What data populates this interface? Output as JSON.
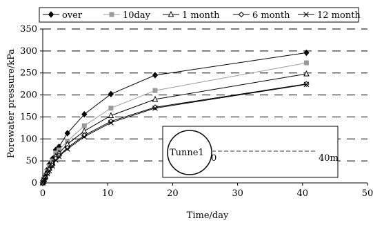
{
  "chart_data": {
    "type": "line",
    "xlabel": "Time/day",
    "ylabel": "Porewater pressure/kPa",
    "xlim": [
      0,
      50
    ],
    "ylim": [
      0,
      350
    ],
    "x_ticks": [
      0,
      10,
      20,
      30,
      40,
      50
    ],
    "y_ticks": [
      0,
      50,
      100,
      150,
      200,
      250,
      300,
      350
    ],
    "grid": "horizontal-dashed",
    "legend_position": "top",
    "x": [
      0,
      0.1,
      0.2,
      0.4,
      0.7,
      1.0,
      1.5,
      2.0,
      2.5,
      3.8,
      6.4,
      10.5,
      17.3,
      40.6
    ],
    "series": [
      {
        "name": "over",
        "marker": "diamond-filled",
        "color": "#000000",
        "values": [
          0,
          5,
          10,
          18,
          30,
          42,
          55,
          75,
          82,
          113,
          156,
          202,
          245,
          296
        ]
      },
      {
        "name": "10day",
        "marker": "square-filled",
        "color": "#9a9a9a",
        "values": [
          0,
          4,
          9,
          16,
          26,
          37,
          50,
          68,
          75,
          95,
          130,
          170,
          210,
          273
        ]
      },
      {
        "name": "1 month",
        "marker": "triangle-open",
        "color": "#000000",
        "values": [
          0,
          4,
          8,
          15,
          25,
          33,
          45,
          60,
          68,
          88,
          118,
          153,
          190,
          248
        ]
      },
      {
        "name": "6 month",
        "marker": "diamond-open",
        "color": "#000000",
        "values": [
          0,
          3,
          7,
          13,
          22,
          30,
          40,
          55,
          62,
          80,
          108,
          140,
          172,
          225
        ]
      },
      {
        "name": "12 month",
        "marker": "x-cross",
        "color": "#000000",
        "values": [
          0,
          3,
          7,
          12,
          21,
          28,
          38,
          52,
          60,
          77,
          105,
          137,
          170,
          224
        ]
      }
    ],
    "inset": {
      "tunnel_label": "Tunne1",
      "start_label": "0",
      "end_label": "40m"
    }
  }
}
